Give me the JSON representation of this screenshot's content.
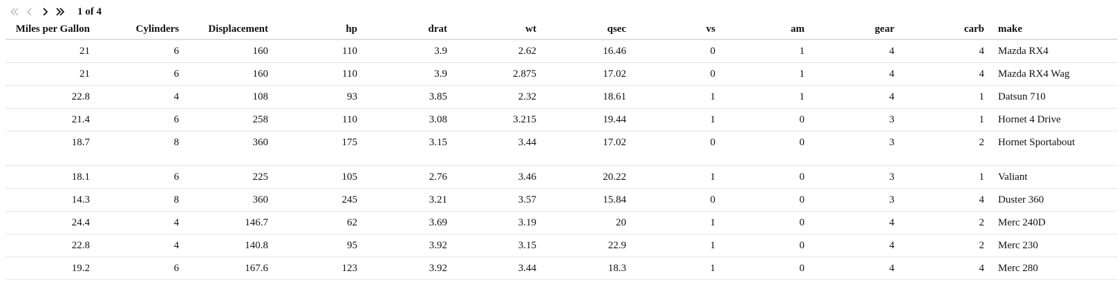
{
  "pager": {
    "page_text": "1 of 4",
    "first_icon": "double-chevron-left-icon",
    "prev_icon": "chevron-left-icon",
    "next_icon": "chevron-right-icon",
    "last_icon": "double-chevron-right-icon"
  },
  "table": {
    "columns": [
      "Miles per Gallon",
      "Cylinders",
      "Displacement",
      "hp",
      "drat",
      "wt",
      "qsec",
      "vs",
      "am",
      "gear",
      "carb",
      "make"
    ],
    "rows": [
      [
        "21",
        "6",
        "160",
        "110",
        "3.9",
        "2.62",
        "16.46",
        "0",
        "1",
        "4",
        "4",
        "Mazda RX4"
      ],
      [
        "21",
        "6",
        "160",
        "110",
        "3.9",
        "2.875",
        "17.02",
        "0",
        "1",
        "4",
        "4",
        "Mazda RX4 Wag"
      ],
      [
        "22.8",
        "4",
        "108",
        "93",
        "3.85",
        "2.32",
        "18.61",
        "1",
        "1",
        "4",
        "1",
        "Datsun 710"
      ],
      [
        "21.4",
        "6",
        "258",
        "110",
        "3.08",
        "3.215",
        "19.44",
        "1",
        "0",
        "3",
        "1",
        "Hornet 4 Drive"
      ],
      [
        "18.7",
        "8",
        "360",
        "175",
        "3.15",
        "3.44",
        "17.02",
        "0",
        "0",
        "3",
        "2",
        "Hornet Sportabout"
      ],
      [
        "18.1",
        "6",
        "225",
        "105",
        "2.76",
        "3.46",
        "20.22",
        "1",
        "0",
        "3",
        "1",
        "Valiant"
      ],
      [
        "14.3",
        "8",
        "360",
        "245",
        "3.21",
        "3.57",
        "15.84",
        "0",
        "0",
        "3",
        "4",
        "Duster 360"
      ],
      [
        "24.4",
        "4",
        "146.7",
        "62",
        "3.69",
        "3.19",
        "20",
        "1",
        "0",
        "4",
        "2",
        "Merc 240D"
      ],
      [
        "22.8",
        "4",
        "140.8",
        "95",
        "3.92",
        "3.15",
        "22.9",
        "1",
        "0",
        "4",
        "2",
        "Merc 230"
      ],
      [
        "19.2",
        "6",
        "167.6",
        "123",
        "3.92",
        "3.44",
        "18.3",
        "1",
        "0",
        "4",
        "4",
        "Merc 280"
      ]
    ]
  }
}
